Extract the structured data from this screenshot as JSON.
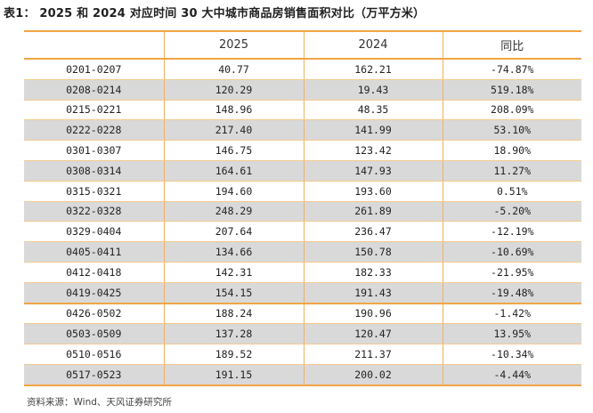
{
  "title": "表1： 2025 和 2024 对应时间 30 大中城市商品房销售面积对比（万平方米）",
  "table": {
    "headers": [
      "",
      "2025",
      "2024",
      "同比"
    ],
    "rows": [
      [
        "0201-0207",
        "40.77",
        "162.21",
        "-74.87%"
      ],
      [
        "0208-0214",
        "120.29",
        "19.43",
        "519.18%"
      ],
      [
        "0215-0221",
        "148.96",
        "48.35",
        "208.09%"
      ],
      [
        "0222-0228",
        "217.40",
        "141.99",
        "53.10%"
      ],
      [
        "0301-0307",
        "146.75",
        "123.42",
        "18.90%"
      ],
      [
        "0308-0314",
        "164.61",
        "147.93",
        "11.27%"
      ],
      [
        "0315-0321",
        "194.60",
        "193.60",
        "0.51%"
      ],
      [
        "0322-0328",
        "248.29",
        "261.89",
        "-5.20%"
      ],
      [
        "0329-0404",
        "207.64",
        "236.47",
        "-12.19%"
      ],
      [
        "0405-0411",
        "134.66",
        "150.78",
        "-10.69%"
      ],
      [
        "0412-0418",
        "142.31",
        "182.33",
        "-21.95%"
      ],
      [
        "0419-0425",
        "154.15",
        "191.43",
        "-19.48%"
      ],
      [
        "0426-0502",
        "188.24",
        "190.96",
        "-1.42%"
      ],
      [
        "0503-0509",
        "137.28",
        "120.47",
        "13.95%"
      ],
      [
        "0510-0516",
        "189.52",
        "211.37",
        "-10.34%"
      ],
      [
        "0517-0523",
        "191.15",
        "200.02",
        "-4.44%"
      ]
    ]
  },
  "source": "资料来源：Wind、天风证券研究所",
  "colors": {
    "accent": "#f2a444",
    "row_alt": "#d9d9d9"
  }
}
